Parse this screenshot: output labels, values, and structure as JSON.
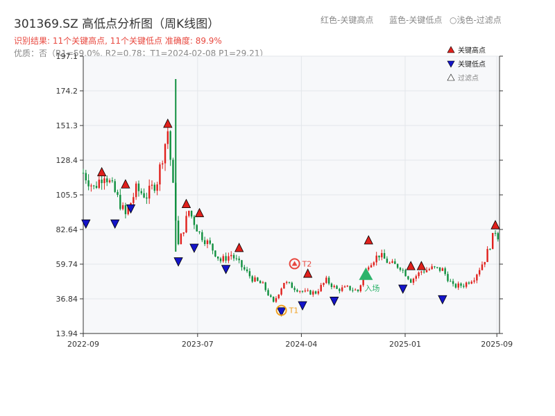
{
  "header": {
    "title": "301369.SZ 高低点分析图（周K线图）",
    "summary": "识别结果: 11个关键高点, 11个关键低点   准确度: 89.9%",
    "quality": "优质：否（R1=59.0%, R2=0.78；T1=2024-02-08 P1=29.21）"
  },
  "top_legend": [
    {
      "text": "红色-关键高点"
    },
    {
      "text": "蓝色-关键低点"
    },
    {
      "text": "○浅色-过滤点"
    }
  ],
  "legend": [
    {
      "label": "关键高点",
      "color": "#e0201c"
    },
    {
      "label": "关键低点",
      "color": "#1414c8"
    },
    {
      "label": "过滤点",
      "color": "#ffffff"
    }
  ],
  "colors": {
    "up": "#e0201c",
    "down": "#0f8f3e",
    "high": "#e0201c",
    "low": "#1414c8",
    "t1": "#f0a020",
    "t2": "#e8483f",
    "entry": "#2db36b"
  },
  "chart_data": {
    "type": "candlestick",
    "ylim": [
      13.94,
      197.1
    ],
    "y_ticks": [
      "13.94",
      "36.84",
      "59.74",
      "82.64",
      "105.5",
      "128.4",
      "151.3",
      "174.2",
      "197.1"
    ],
    "x_ticks": [
      {
        "label": "2022-09",
        "date": "2022-09-01"
      },
      {
        "label": "2023-07",
        "date": "2023-07-01"
      },
      {
        "label": "2024-04",
        "date": "2024-04-01"
      },
      {
        "label": "2025-01",
        "date": "2025-01-01"
      },
      {
        "label": "2025-09",
        "date": "2025-09-01"
      }
    ],
    "xlim": [
      "2022-09-01",
      "2025-09-08"
    ],
    "points": [
      [
        "2022-09-01",
        120
      ],
      [
        "2022-09-29",
        110
      ],
      [
        "2022-10-27",
        120
      ],
      [
        "2022-11-24",
        107
      ],
      [
        "2022-12-22",
        92
      ],
      [
        "2023-01-19",
        109
      ],
      [
        "2023-02-16",
        105
      ],
      [
        "2023-03-16",
        115
      ],
      [
        "2023-04-13",
        148
      ],
      [
        "2023-05-11",
        72
      ],
      [
        "2023-06-08",
        95
      ],
      [
        "2023-07-06",
        80
      ],
      [
        "2023-08-03",
        72
      ],
      [
        "2023-08-31",
        62
      ],
      [
        "2023-09-28",
        66
      ],
      [
        "2023-10-26",
        58
      ],
      [
        "2023-11-23",
        50
      ],
      [
        "2023-12-21",
        46
      ],
      [
        "2024-01-18",
        34
      ],
      [
        "2024-02-15",
        48
      ],
      [
        "2024-03-14",
        44
      ],
      [
        "2024-04-11",
        41
      ],
      [
        "2024-05-09",
        41
      ],
      [
        "2024-06-06",
        49
      ],
      [
        "2024-07-04",
        43
      ],
      [
        "2024-08-01",
        44
      ],
      [
        "2024-08-29",
        42
      ],
      [
        "2024-09-26",
        60
      ],
      [
        "2024-10-24",
        66
      ],
      [
        "2024-11-21",
        60
      ],
      [
        "2024-12-19",
        58
      ],
      [
        "2025-01-16",
        49
      ],
      [
        "2025-02-13",
        55
      ],
      [
        "2025-03-13",
        57
      ],
      [
        "2025-04-10",
        56
      ],
      [
        "2025-05-08",
        45
      ],
      [
        "2025-06-05",
        46
      ],
      [
        "2025-07-03",
        51
      ],
      [
        "2025-07-31",
        63
      ],
      [
        "2025-08-28",
        82
      ],
      [
        "2025-09-05",
        78
      ]
    ],
    "spike": {
      "date": "2023-05-04",
      "high": 182,
      "low": 68
    },
    "key_highs": [
      {
        "date": "2022-10-20",
        "value": 118
      },
      {
        "date": "2022-12-22",
        "value": 110
      },
      {
        "date": "2023-04-13",
        "value": 150
      },
      {
        "date": "2023-06-01",
        "value": 97
      },
      {
        "date": "2023-07-06",
        "value": 91
      },
      {
        "date": "2023-10-19",
        "value": 68
      },
      {
        "date": "2024-04-18",
        "value": 51
      },
      {
        "date": "2024-09-26",
        "value": 73
      },
      {
        "date": "2025-01-16",
        "value": 56
      },
      {
        "date": "2025-08-28",
        "value": 83
      },
      {
        "date": "2025-02-13",
        "value": 56
      }
    ],
    "key_lows": [
      {
        "date": "2022-09-08",
        "value": 89
      },
      {
        "date": "2022-11-24",
        "value": 89
      },
      {
        "date": "2023-01-05",
        "value": 99
      },
      {
        "date": "2023-05-11",
        "value": 64
      },
      {
        "date": "2023-06-22",
        "value": 73
      },
      {
        "date": "2023-09-14",
        "value": 59
      },
      {
        "date": "2024-02-08",
        "value": 31
      },
      {
        "date": "2024-04-04",
        "value": 35
      },
      {
        "date": "2024-06-27",
        "value": 38
      },
      {
        "date": "2024-12-26",
        "value": 46
      },
      {
        "date": "2025-04-10",
        "value": 39
      }
    ],
    "annotations": [
      {
        "label": "T1",
        "date": "2024-02-08",
        "value": 29.21
      },
      {
        "label": "T2",
        "date": "2024-03-14",
        "value": 60
      },
      {
        "label": "入场",
        "date": "2024-09-19",
        "value": 53
      }
    ]
  }
}
